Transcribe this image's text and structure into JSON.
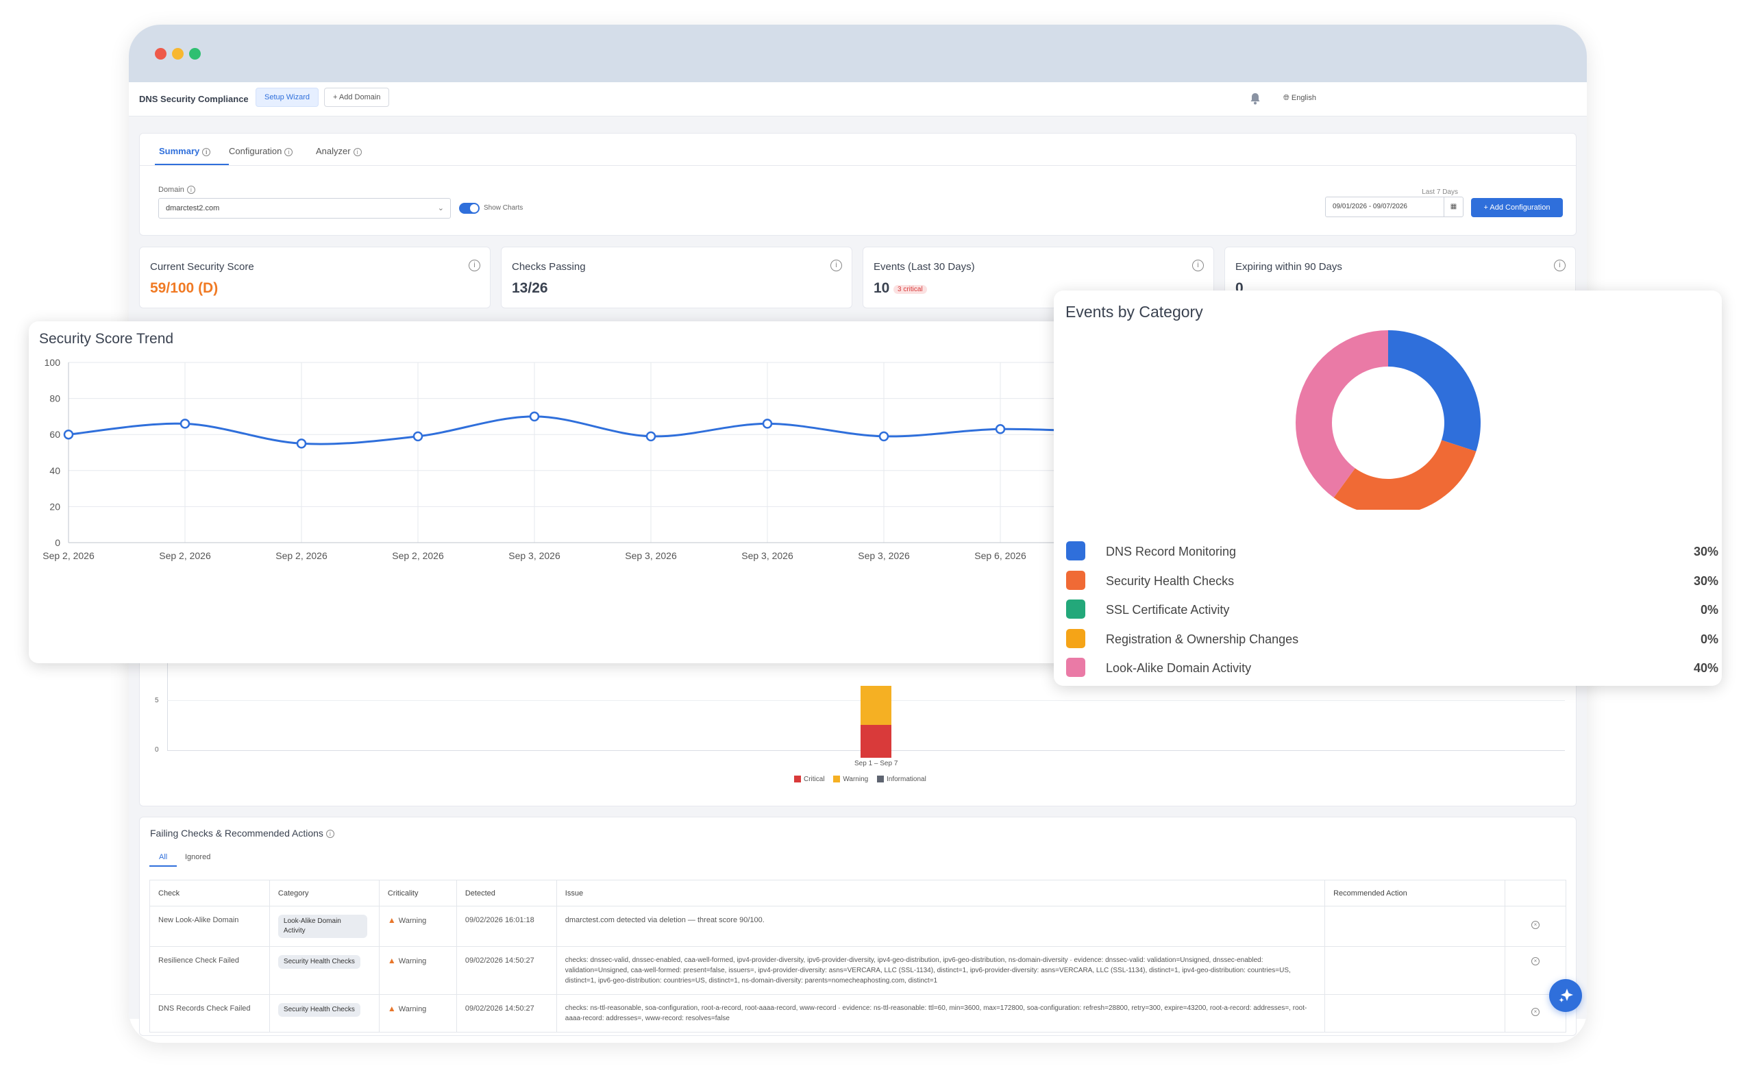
{
  "window": {
    "dots": [
      "#ee5a4a",
      "#f7b731",
      "#2fbf71"
    ]
  },
  "appbar": {
    "title": "DNS Security Compliance",
    "setup_wizard": "Setup Wizard",
    "add_domain": "Add Domain",
    "language": "English"
  },
  "tabs": [
    "Summary",
    "Configuration",
    "Analyzer"
  ],
  "filters": {
    "domain_label": "Domain",
    "domain_value": "dmarctest2.com",
    "show_charts": "Show Charts",
    "range_label": "Last 7 Days",
    "date_range": "09/01/2026 - 09/07/2026",
    "add_configuration": "Add Configuration"
  },
  "cards": [
    {
      "label": "Current Security Score",
      "value": "59/100 (D)",
      "color": "#f07a24"
    },
    {
      "label": "Checks Passing",
      "value": "13/26"
    },
    {
      "label": "Events (Last 30 Days)",
      "value": "10",
      "badge": "3 critical"
    },
    {
      "label": "Expiring within 90 Days",
      "value": "0"
    }
  ],
  "events_bar": {
    "y_ticks": [
      "5",
      "0"
    ],
    "x_label": "Sep 1 – Sep 7",
    "legend": [
      "Critical",
      "Warning",
      "Informational"
    ],
    "colors": [
      "#d93a3a",
      "#f5b023",
      "#5e6470"
    ]
  },
  "failing": {
    "title": "Failing Checks & Recommended Actions",
    "tabs": [
      "All",
      "Ignored"
    ],
    "columns": [
      "Check",
      "Category",
      "Criticality",
      "Detected",
      "Issue",
      "Recommended Action",
      ""
    ],
    "rows": [
      {
        "check": "New Look-Alike Domain",
        "category": "Look-Alike Domain Activity",
        "criticality": "Warning",
        "detected": "09/02/2026 16:01:18",
        "issue": "dmarctest.com detected via deletion — threat score 90/100."
      },
      {
        "check": "Resilience Check Failed",
        "category": "Security Health Checks",
        "criticality": "Warning",
        "detected": "09/02/2026 14:50:27",
        "issue": "checks: dnssec-valid, dnssec-enabled, caa-well-formed, ipv4-provider-diversity, ipv6-provider-diversity, ipv4-geo-distribution, ipv6-geo-distribution, ns-domain-diversity · evidence: dnssec-valid: validation=Unsigned, dnssec-enabled: validation=Unsigned, caa-well-formed: present=false, issuers=, ipv4-provider-diversity: asns=VERCARA, LLC (SSL-1134), distinct=1, ipv6-provider-diversity: asns=VERCARA, LLC (SSL-1134), distinct=1, ipv4-geo-distribution: countries=US, distinct=1, ipv6-geo-distribution: countries=US, distinct=1, ns-domain-diversity: parents=nomecheaphosting.com, distinct=1"
      },
      {
        "check": "DNS Records Check Failed",
        "category": "Security Health Checks",
        "criticality": "Warning",
        "detected": "09/02/2026 14:50:27",
        "issue": "checks: ns-ttl-reasonable, soa-configuration, root-a-record, root-aaaa-record, www-record · evidence: ns-ttl-reasonable: ttl=60, min=3600, max=172800, soa-configuration: refresh=28800, retry=300, expire=43200, root-a-record: addresses=, root-aaaa-record: addresses=, www-record: resolves=false"
      }
    ]
  },
  "trend": {
    "title": "Security Score Trend",
    "color": "#2f6fdb"
  },
  "donut": {
    "title": "Events by Category"
  },
  "chart_data": [
    {
      "type": "line",
      "title": "Security Score Trend",
      "x": [
        "Sep 2, 2026",
        "Sep 2, 2026",
        "Sep 2, 2026",
        "Sep 2, 2026",
        "Sep 3, 2026",
        "Sep 3, 2026",
        "Sep 3, 2026",
        "Sep 3, 2026",
        "Sep 6, 2026",
        "Sep 6, 2026"
      ],
      "values": [
        60,
        66,
        55,
        59,
        70,
        59,
        66,
        59,
        63,
        61
      ],
      "ylim": [
        0,
        100
      ],
      "y_ticks": [
        0,
        20,
        40,
        60,
        80,
        100
      ],
      "grid": true
    },
    {
      "type": "pie",
      "title": "Events by Category",
      "categories": [
        "DNS Record Monitoring",
        "Security Health Checks",
        "SSL Certificate Activity",
        "Registration & Ownership Changes",
        "Look-Alike Domain Activity"
      ],
      "values": [
        30,
        30,
        0,
        0,
        40
      ],
      "labels": [
        "30%",
        "30%",
        "0%",
        "0%",
        "40%"
      ],
      "colors": [
        "#2f6fdb",
        "#f06a35",
        "#23a87a",
        "#f5a417",
        "#ea7aa6"
      ]
    }
  ]
}
